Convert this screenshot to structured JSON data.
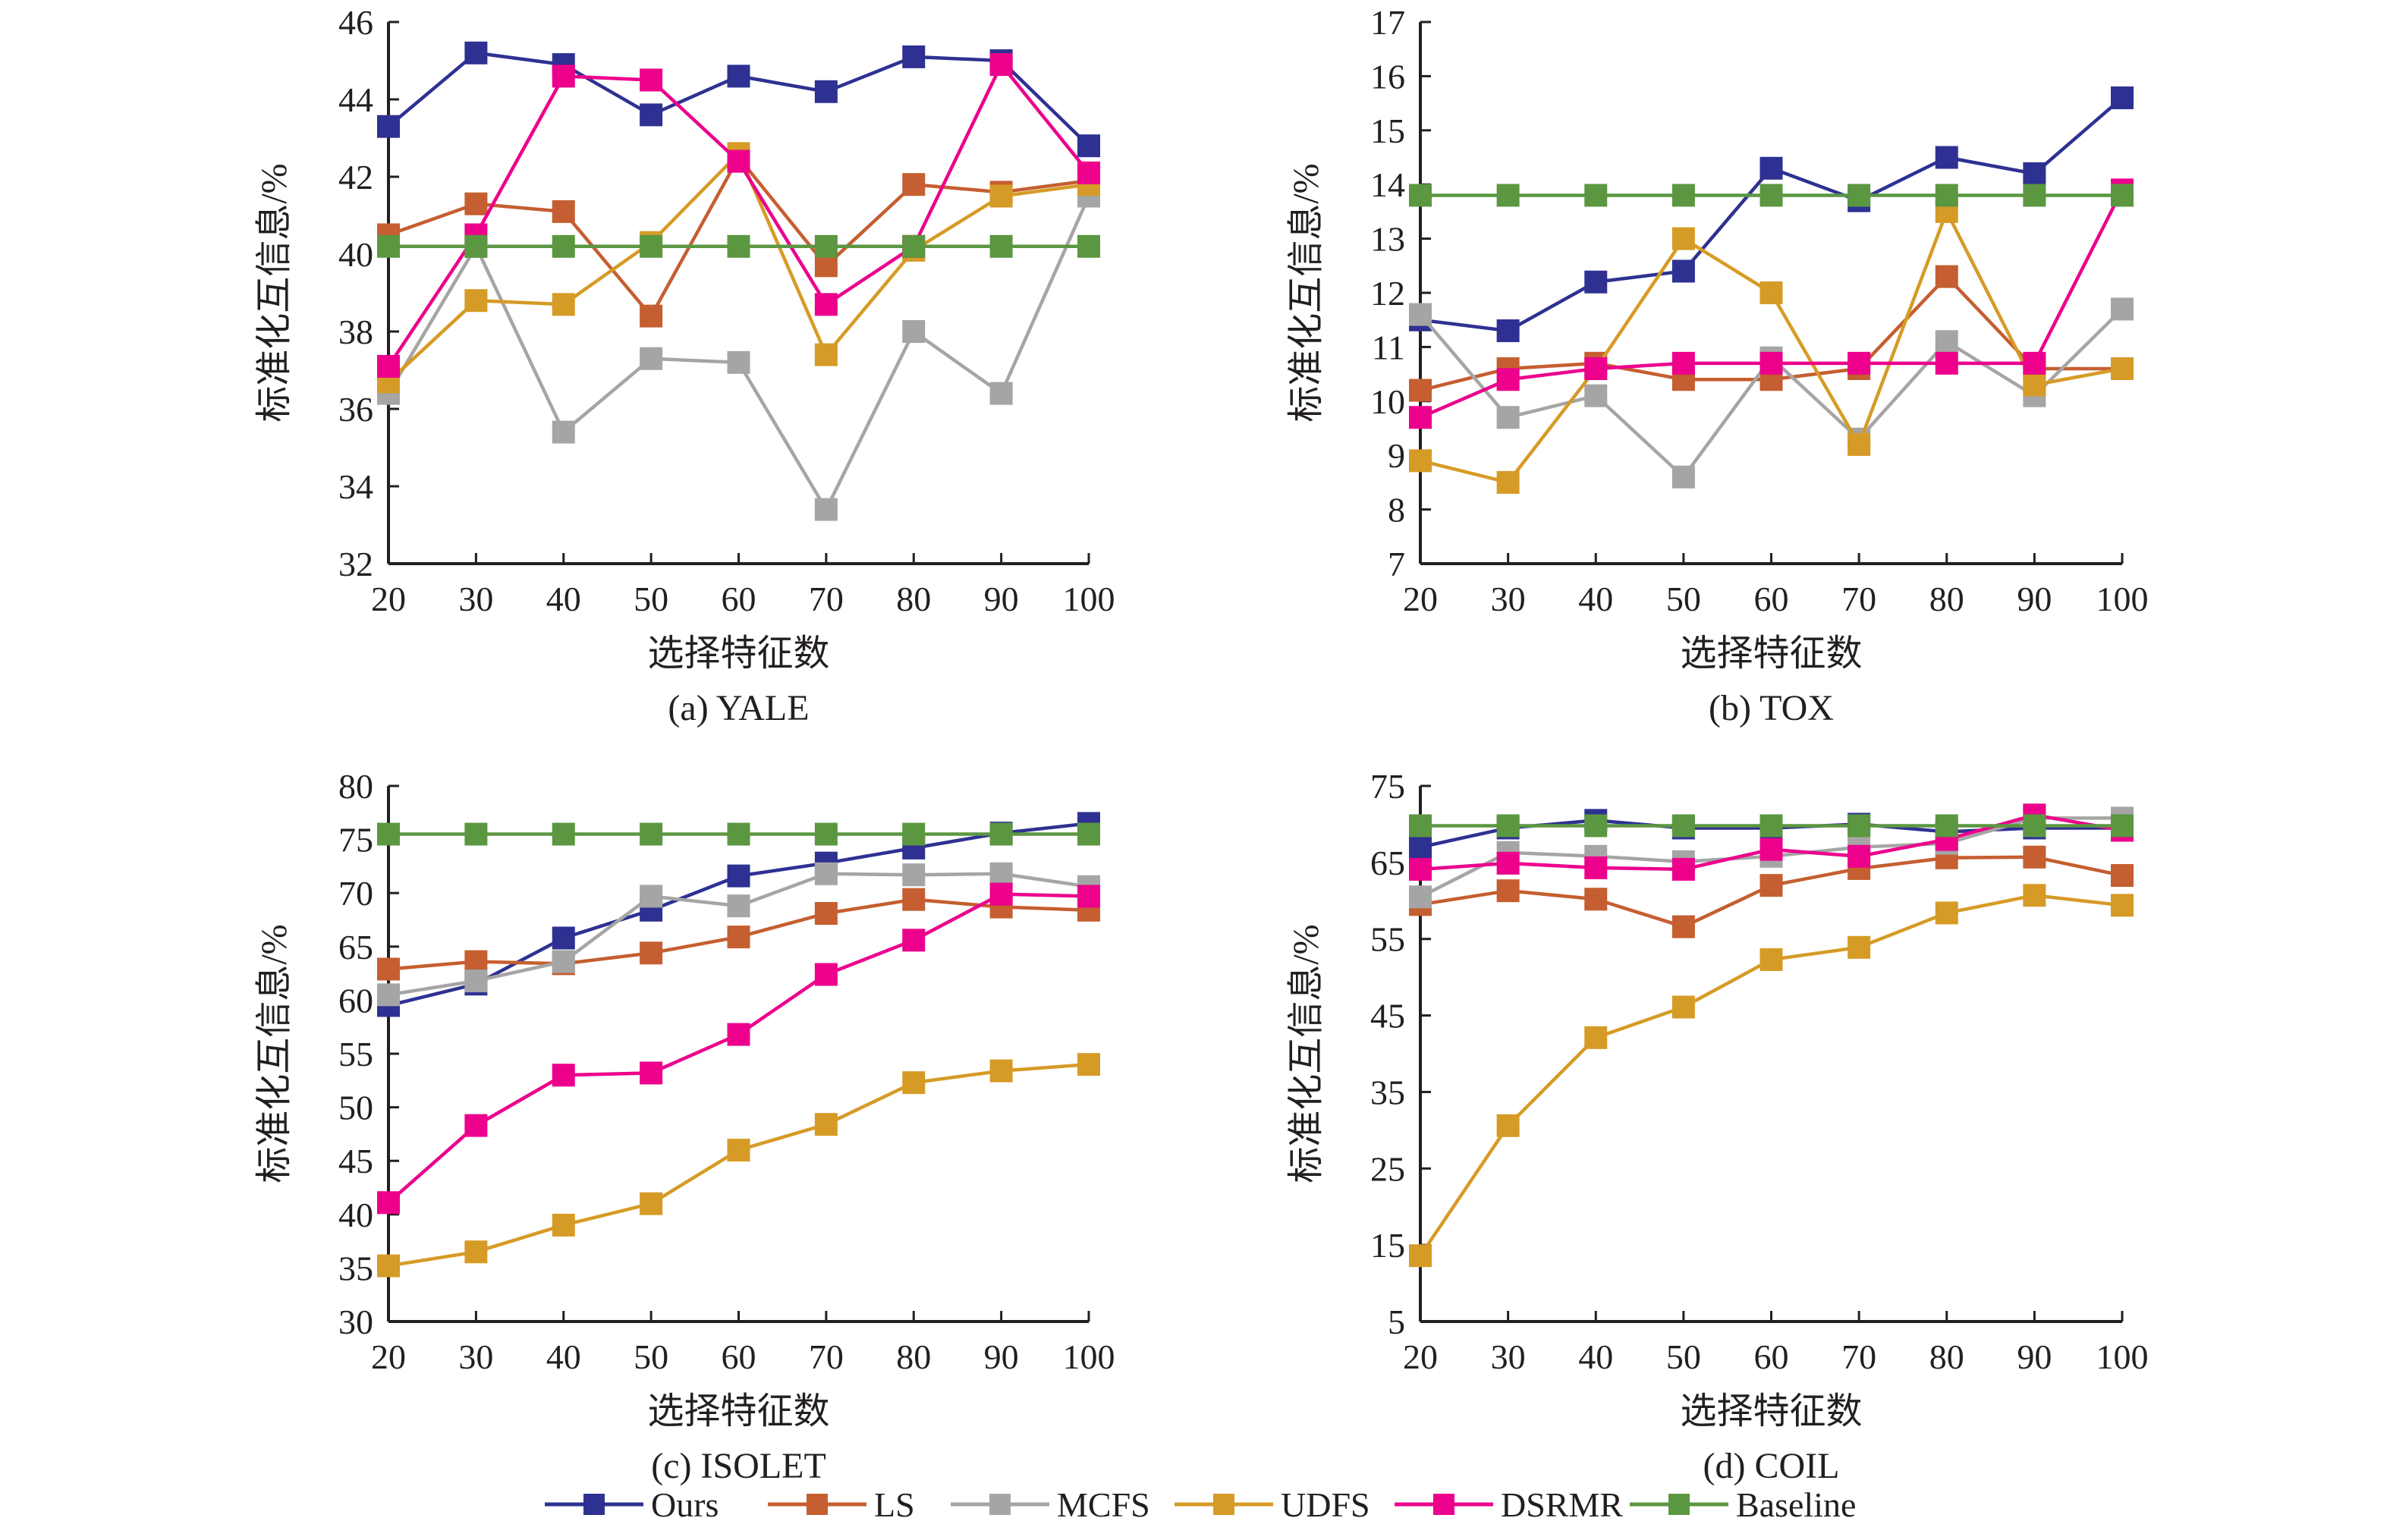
{
  "figure": {
    "legend": {
      "placement": "bottom-center",
      "entries": [
        {
          "name": "Ours",
          "color": "#2e3192"
        },
        {
          "name": "LS",
          "color": "#c55e30"
        },
        {
          "name": "MCFS",
          "color": "#a5a5a5"
        },
        {
          "name": "UDFS",
          "color": "#d69b26"
        },
        {
          "name": "DSRMR",
          "color": "#ec008c"
        },
        {
          "name": "Baseline",
          "color": "#5b9741"
        }
      ]
    }
  },
  "chart_data": [
    {
      "type": "line",
      "title": "(a) YALE",
      "xlabel": "选择特征数",
      "ylabel": "标准化互信息/%",
      "x": [
        20,
        30,
        40,
        50,
        60,
        70,
        80,
        90,
        100
      ],
      "xticks": [
        "20",
        "30",
        "40",
        "50",
        "60",
        "70",
        "80",
        "90",
        "100"
      ],
      "ylim": [
        32,
        46
      ],
      "yticks": [
        32,
        34,
        36,
        38,
        40,
        42,
        44,
        46
      ],
      "grid": false,
      "series": [
        {
          "name": "Ours",
          "values": [
            43.3,
            45.2,
            44.9,
            43.6,
            44.6,
            44.2,
            45.1,
            45.0,
            42.8
          ]
        },
        {
          "name": "LS",
          "values": [
            40.5,
            41.3,
            41.1,
            38.4,
            42.5,
            39.7,
            41.8,
            41.6,
            41.9
          ]
        },
        {
          "name": "MCFS",
          "values": [
            36.4,
            40.2,
            35.4,
            37.3,
            37.2,
            33.4,
            38.0,
            36.4,
            41.5
          ]
        },
        {
          "name": "UDFS",
          "values": [
            36.7,
            38.8,
            38.7,
            40.3,
            42.6,
            37.4,
            40.1,
            41.5,
            41.8
          ]
        },
        {
          "name": "DSRMR",
          "values": [
            37.1,
            40.5,
            44.6,
            44.5,
            42.4,
            38.7,
            40.2,
            44.9,
            42.1
          ]
        },
        {
          "name": "Baseline",
          "values": [
            40.2,
            40.2,
            40.2,
            40.2,
            40.2,
            40.2,
            40.2,
            40.2,
            40.2
          ]
        }
      ]
    },
    {
      "type": "line",
      "title": "(b) TOX",
      "xlabel": "选择特征数",
      "ylabel": "标准化互信息/%",
      "x": [
        20,
        30,
        40,
        50,
        60,
        70,
        80,
        90,
        100
      ],
      "xticks": [
        "20",
        "30",
        "40",
        "50",
        "60",
        "70",
        "80",
        "90",
        "100"
      ],
      "ylim": [
        7,
        17
      ],
      "yticks": [
        7,
        8,
        9,
        10,
        11,
        12,
        13,
        14,
        15,
        16,
        17
      ],
      "grid": false,
      "series": [
        {
          "name": "Ours",
          "values": [
            11.5,
            11.3,
            12.2,
            12.4,
            14.3,
            13.7,
            14.5,
            14.2,
            15.6
          ]
        },
        {
          "name": "LS",
          "values": [
            10.2,
            10.6,
            10.7,
            10.4,
            10.4,
            10.6,
            12.3,
            10.6,
            10.6
          ]
        },
        {
          "name": "MCFS",
          "values": [
            11.6,
            9.7,
            10.1,
            8.6,
            10.8,
            9.3,
            11.1,
            10.1,
            11.7
          ]
        },
        {
          "name": "UDFS",
          "values": [
            8.9,
            8.5,
            10.6,
            13.0,
            12.0,
            9.2,
            13.5,
            10.3,
            10.6
          ]
        },
        {
          "name": "DSRMR",
          "values": [
            9.7,
            10.4,
            10.6,
            10.7,
            10.7,
            10.7,
            10.7,
            10.7,
            13.9
          ]
        },
        {
          "name": "Baseline",
          "values": [
            13.8,
            13.8,
            13.8,
            13.8,
            13.8,
            13.8,
            13.8,
            13.8,
            13.8
          ]
        }
      ]
    },
    {
      "type": "line",
      "title": "(c) ISOLET",
      "xlabel": "选择特征数",
      "ylabel": "标准化互信息/%",
      "x": [
        20,
        30,
        40,
        50,
        60,
        70,
        80,
        90,
        100
      ],
      "xticks": [
        "20",
        "30",
        "40",
        "50",
        "60",
        "70",
        "80",
        "90",
        "100"
      ],
      "ylim": [
        30,
        80
      ],
      "yticks": [
        30,
        35,
        40,
        45,
        50,
        55,
        60,
        65,
        70,
        75,
        80
      ],
      "grid": false,
      "series": [
        {
          "name": "Ours",
          "values": [
            59.5,
            61.5,
            65.8,
            68.4,
            71.6,
            72.8,
            74.2,
            75.6,
            76.5
          ]
        },
        {
          "name": "LS",
          "values": [
            62.9,
            63.6,
            63.4,
            64.4,
            65.9,
            68.1,
            69.4,
            68.7,
            68.4
          ]
        },
        {
          "name": "MCFS",
          "values": [
            60.5,
            61.8,
            63.6,
            69.7,
            68.8,
            71.8,
            71.7,
            71.8,
            70.6
          ]
        },
        {
          "name": "UDFS",
          "values": [
            35.2,
            36.5,
            39.0,
            41.0,
            46.0,
            48.4,
            52.3,
            53.4,
            54.0
          ]
        },
        {
          "name": "DSRMR",
          "values": [
            41.1,
            48.3,
            53.0,
            53.2,
            56.8,
            62.4,
            65.6,
            69.9,
            69.7
          ]
        },
        {
          "name": "Baseline",
          "values": [
            75.5,
            75.5,
            75.5,
            75.5,
            75.5,
            75.5,
            75.5,
            75.5,
            75.5
          ]
        }
      ]
    },
    {
      "type": "line",
      "title": "(d) COIL",
      "xlabel": "选择特征数",
      "ylabel": "标准化互信息/%",
      "x": [
        20,
        30,
        40,
        50,
        60,
        70,
        80,
        90,
        100
      ],
      "xticks": [
        "20",
        "30",
        "40",
        "50",
        "60",
        "70",
        "80",
        "90",
        "100"
      ],
      "ylim": [
        5,
        75
      ],
      "yticks": [
        5,
        15,
        25,
        35,
        45,
        55,
        65,
        75
      ],
      "grid": false,
      "series": [
        {
          "name": "Ours",
          "values": [
            67.0,
            69.5,
            70.5,
            69.5,
            69.5,
            70.0,
            69.0,
            69.5,
            69.5
          ]
        },
        {
          "name": "LS",
          "values": [
            59.5,
            61.3,
            60.2,
            56.6,
            62.0,
            64.2,
            65.6,
            65.7,
            63.3
          ]
        },
        {
          "name": "MCFS",
          "values": [
            60.5,
            66.3,
            65.8,
            65.1,
            65.8,
            67.0,
            67.5,
            70.8,
            70.8
          ]
        },
        {
          "name": "UDFS",
          "values": [
            13.6,
            30.6,
            42.1,
            46.1,
            52.3,
            53.9,
            58.4,
            60.7,
            59.4
          ]
        },
        {
          "name": "DSRMR",
          "values": [
            64.1,
            64.9,
            64.3,
            64.1,
            66.7,
            65.8,
            68.0,
            71.2,
            69.2
          ]
        },
        {
          "name": "Baseline",
          "values": [
            69.8,
            69.8,
            69.8,
            69.8,
            69.8,
            69.8,
            69.8,
            69.8,
            69.8
          ]
        }
      ]
    }
  ]
}
